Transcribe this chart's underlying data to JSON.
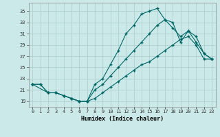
{
  "xlabel": "Humidex (Indice chaleur)",
  "bg_color": "#cce9e9",
  "grid_color": "#aacccc",
  "line_color": "#006666",
  "xlim": [
    -0.5,
    23.5
  ],
  "ylim": [
    18,
    36.5
  ],
  "yticks": [
    19,
    21,
    23,
    25,
    27,
    29,
    31,
    33,
    35
  ],
  "xticks": [
    0,
    1,
    2,
    3,
    4,
    5,
    6,
    7,
    8,
    9,
    10,
    11,
    12,
    13,
    14,
    15,
    16,
    17,
    18,
    19,
    20,
    21,
    22,
    23
  ],
  "line1_x": [
    0,
    1,
    2,
    3,
    4,
    5,
    6,
    7,
    8,
    9,
    10,
    11,
    12,
    13,
    14,
    15,
    16,
    17,
    18,
    19,
    20,
    21,
    22,
    23
  ],
  "line1_y": [
    22,
    22,
    20.5,
    20.5,
    20,
    19.5,
    19,
    19,
    22,
    23,
    25.5,
    28,
    31,
    32.5,
    34.5,
    35,
    35.5,
    33.5,
    33,
    29.5,
    31.5,
    30.5,
    27.5,
    26.5
  ],
  "line2_x": [
    0,
    2,
    3,
    4,
    5,
    6,
    7,
    8,
    9,
    10,
    11,
    12,
    13,
    14,
    15,
    16,
    17,
    18,
    19,
    20,
    21,
    22,
    23
  ],
  "line2_y": [
    22,
    20.5,
    20.5,
    20,
    19.5,
    19,
    19,
    21,
    22,
    23.5,
    25,
    26.5,
    28,
    29.5,
    31,
    32.5,
    33.5,
    32,
    30.5,
    31.5,
    29.5,
    27.5,
    26.5
  ],
  "line3_x": [
    0,
    1,
    2,
    3,
    4,
    5,
    6,
    7,
    8,
    9,
    10,
    11,
    12,
    13,
    14,
    15,
    16,
    17,
    18,
    19,
    20,
    21,
    22,
    23
  ],
  "line3_y": [
    22,
    22,
    20.5,
    20.5,
    20,
    19.5,
    19,
    19,
    19.5,
    20.5,
    21.5,
    22.5,
    23.5,
    24.5,
    25.5,
    26,
    27,
    28,
    29,
    30,
    30.5,
    29,
    26.5,
    26.5
  ]
}
